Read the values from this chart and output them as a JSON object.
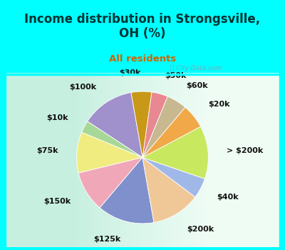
{
  "title": "Income distribution in Strongsville,\nOH (%)",
  "subtitle": "All residents",
  "title_color": "#003333",
  "subtitle_color": "#cc6600",
  "background_color": "#00ffff",
  "chart_bg_left": "#b8e8d8",
  "chart_bg_right": "#e8f8f0",
  "watermark": "ⓘ City-Data.com",
  "labels": [
    "$100k",
    "$10k",
    "$75k",
    "$150k",
    "$125k",
    "$200k",
    "$40k",
    "> $200k",
    "$20k",
    "$60k",
    "$50k",
    "$30k"
  ],
  "sizes": [
    13,
    3,
    10,
    10,
    14,
    12,
    5,
    13,
    6,
    5,
    4,
    5
  ],
  "colors": [
    "#a090cc",
    "#a8d898",
    "#f0ec80",
    "#f0a8b8",
    "#8090cc",
    "#f0c898",
    "#a0b8e8",
    "#c8e860",
    "#f0a848",
    "#c8b890",
    "#e88890",
    "#c89818"
  ],
  "label_color": "#111111",
  "label_fontsize": 8,
  "startangle": 90
}
